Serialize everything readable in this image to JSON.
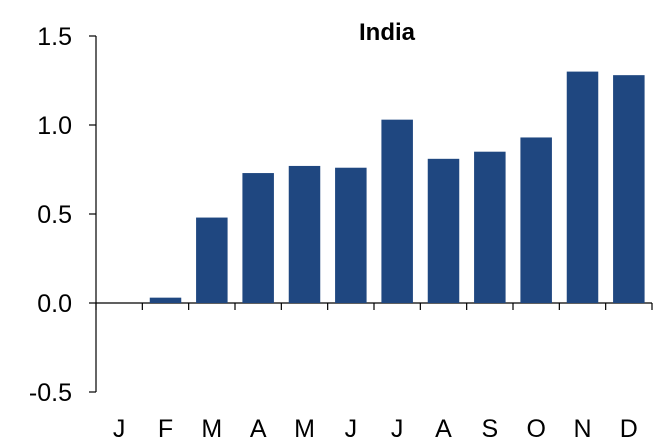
{
  "chart_data": {
    "type": "bar",
    "title": "India",
    "xlabel": "",
    "ylabel": "",
    "categories": [
      "J",
      "F",
      "M",
      "A",
      "M",
      "J",
      "J",
      "A",
      "S",
      "O",
      "N",
      "D"
    ],
    "values": [
      0.0,
      0.03,
      0.48,
      0.73,
      0.77,
      0.76,
      1.03,
      0.81,
      0.85,
      0.93,
      1.3,
      1.28
    ],
    "ylim": [
      -0.5,
      1.5
    ],
    "yticks": [
      "1.5",
      "1.0",
      "0.5",
      "0.0",
      "-0.5"
    ],
    "yticks_values": [
      1.5,
      1.0,
      0.5,
      0.0,
      -0.5
    ],
    "bar_color": "#1f4780",
    "axis_color": "#000000",
    "grid": false,
    "legend": "none"
  }
}
